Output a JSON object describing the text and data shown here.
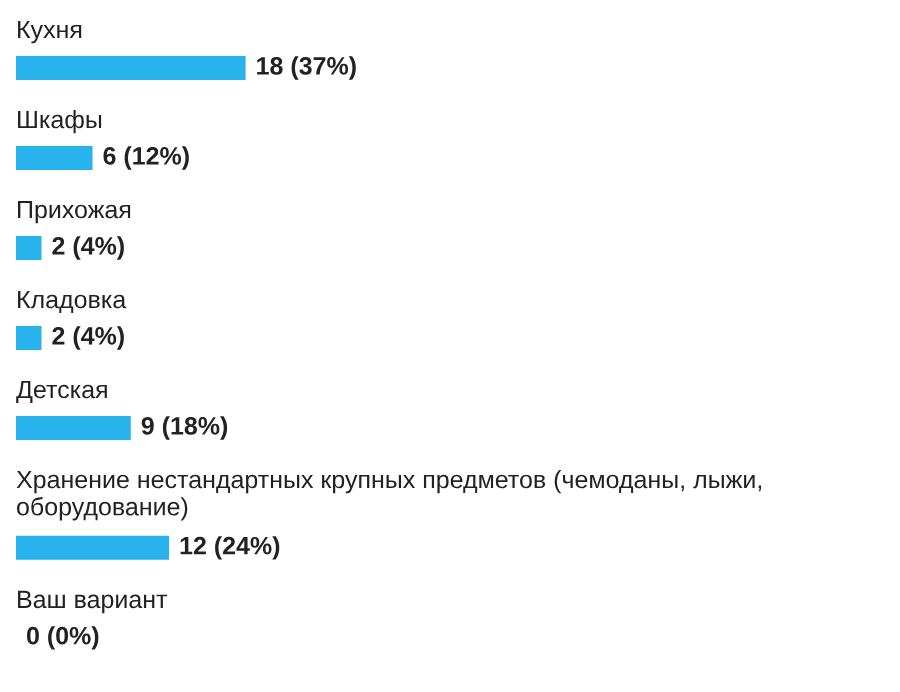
{
  "chart_data": {
    "type": "bar",
    "orientation": "horizontal",
    "color": "#29b3ec",
    "categories": [
      "Кухня",
      "Шкафы",
      "Прихожая",
      "Кладовка",
      "Детская",
      "Хранение нестандартных крупных предметов (чемоданы, лыжи, оборудование)",
      "Ваш вариант"
    ],
    "values": [
      18,
      6,
      2,
      2,
      9,
      12,
      0
    ],
    "value_labels": [
      "18 (37%)",
      "6 (12%)",
      "2 (4%)",
      "2 (4%)",
      "9 (18%)",
      "12 (24%)",
      "0 (0%)"
    ]
  }
}
